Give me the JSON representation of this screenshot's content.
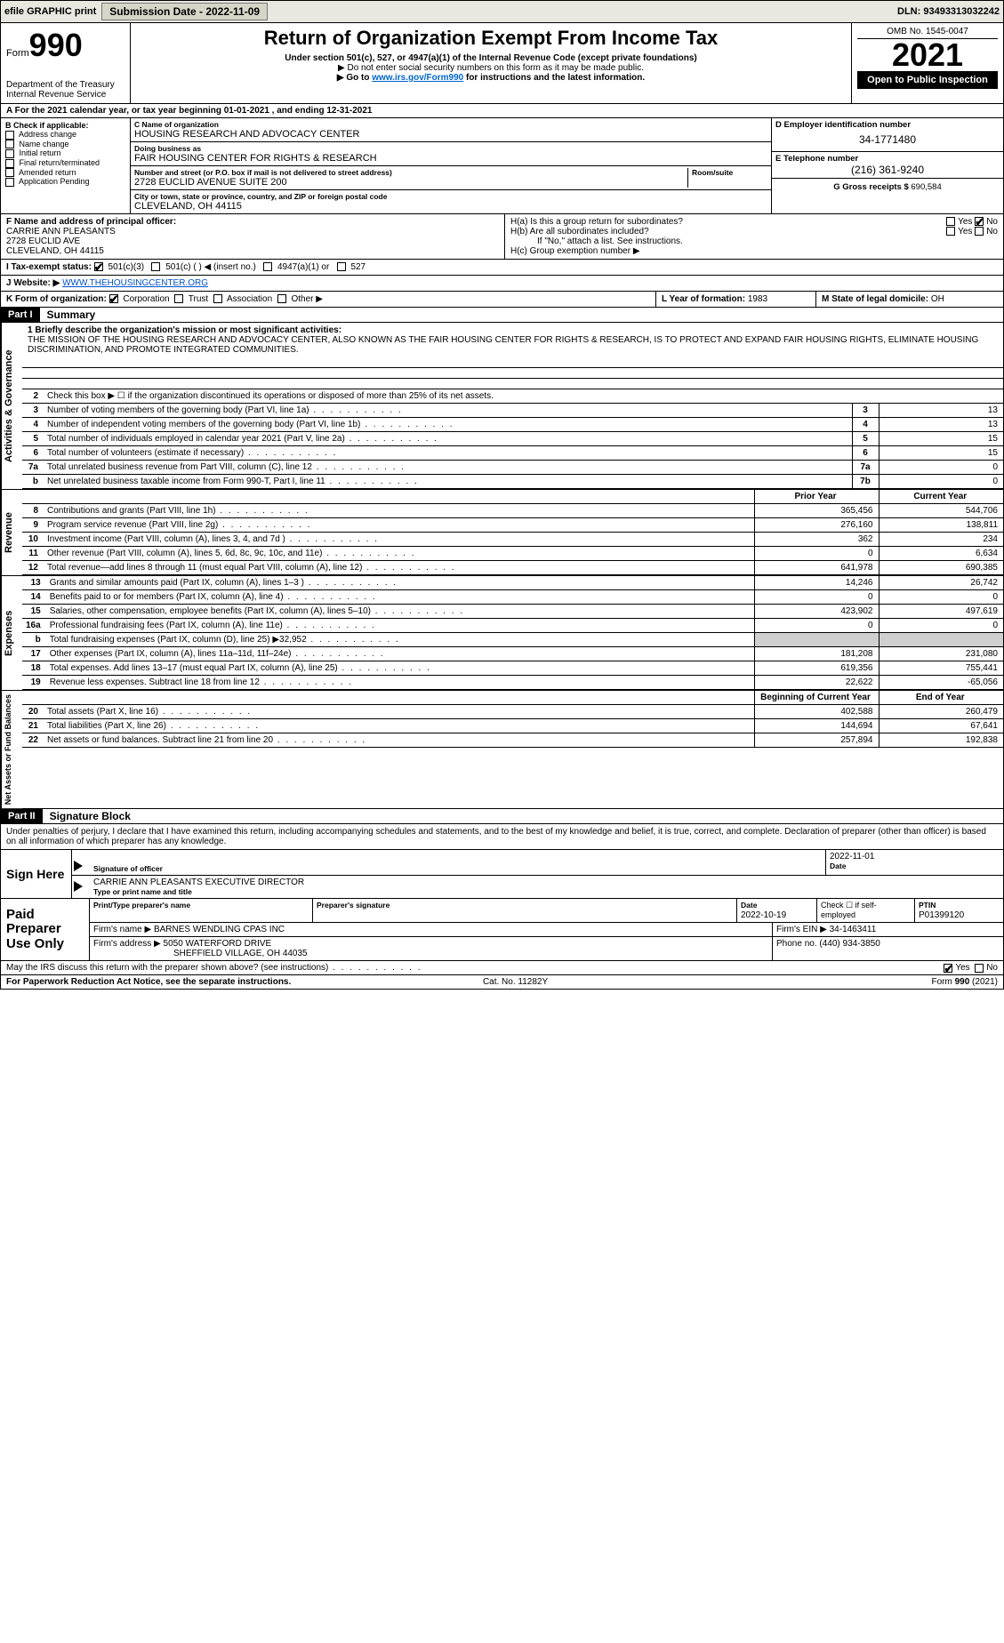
{
  "topbar": {
    "efile": "efile GRAPHIC print",
    "submission_label": "Submission Date - 2022-11-09",
    "dln": "DLN: 93493313032242"
  },
  "header": {
    "form_label": "Form",
    "form_number": "990",
    "title": "Return of Organization Exempt From Income Tax",
    "subtitle": "Under section 501(c), 527, or 4947(a)(1) of the Internal Revenue Code (except private foundations)",
    "note1": "▶ Do not enter social security numbers on this form as it may be made public.",
    "note2_pre": "▶ Go to ",
    "note2_link": "www.irs.gov/Form990",
    "note2_post": " for instructions and the latest information.",
    "omb": "OMB No. 1545-0047",
    "year": "2021",
    "open_public": "Open to Public Inspection",
    "dept": "Department of the Treasury",
    "irs": "Internal Revenue Service"
  },
  "lineA": "For the 2021 calendar year, or tax year beginning 01-01-2021    , and ending 12-31-2021",
  "boxB": {
    "heading": "B Check if applicable:",
    "items": [
      "Address change",
      "Name change",
      "Initial return",
      "Final return/terminated",
      "Amended return",
      "Application Pending"
    ]
  },
  "boxC": {
    "name_label": "C Name of organization",
    "name": "HOUSING RESEARCH AND ADVOCACY CENTER",
    "dba_label": "Doing business as",
    "dba": "FAIR HOUSING CENTER FOR RIGHTS & RESEARCH",
    "addr_label": "Number and street (or P.O. box if mail is not delivered to street address)",
    "room_label": "Room/suite",
    "addr": "2728 EUCLID AVENUE SUITE 200",
    "city_label": "City or town, state or province, country, and ZIP or foreign postal code",
    "city": "CLEVELAND, OH  44115"
  },
  "boxD": {
    "label": "D Employer identification number",
    "value": "34-1771480"
  },
  "boxE": {
    "label": "E Telephone number",
    "value": "(216) 361-9240"
  },
  "boxG": {
    "label": "G Gross receipts $",
    "value": "690,584"
  },
  "boxF": {
    "label": "F Name and address of principal officer:",
    "name": "CARRIE ANN PLEASANTS",
    "addr1": "2728 EUCLID AVE",
    "addr2": "CLEVELAND, OH  44115"
  },
  "boxH": {
    "ha": "H(a)  Is this a group return for subordinates?",
    "hb": "H(b)  Are all subordinates included?",
    "hb_note": "If \"No,\" attach a list. See instructions.",
    "hc": "H(c)  Group exemption number ▶",
    "yes": "Yes",
    "no": "No"
  },
  "boxI": {
    "label": "I  Tax-exempt status:",
    "opts": [
      "501(c)(3)",
      "501(c) (   ) ◀ (insert no.)",
      "4947(a)(1) or",
      "527"
    ]
  },
  "boxJ": {
    "label": "J  Website: ▶",
    "value": "WWW.THEHOUSINGCENTER.ORG"
  },
  "boxK": {
    "label": "K Form of organization:",
    "opts": [
      "Corporation",
      "Trust",
      "Association",
      "Other ▶"
    ]
  },
  "boxL": {
    "label": "L Year of formation:",
    "value": "1983"
  },
  "boxM": {
    "label": "M State of legal domicile:",
    "value": "OH"
  },
  "part1": {
    "label": "Part I",
    "title": "Summary"
  },
  "mission": {
    "prompt": "1  Briefly describe the organization's mission or most significant activities:",
    "text": "THE MISSION OF THE HOUSING RESEARCH AND ADVOCACY CENTER, ALSO KNOWN AS THE FAIR HOUSING CENTER FOR RIGHTS & RESEARCH, IS TO PROTECT AND EXPAND FAIR HOUSING RIGHTS, ELIMINATE HOUSING DISCRIMINATION, AND PROMOTE INTEGRATED COMMUNITIES."
  },
  "gov_rows": [
    {
      "n": "2",
      "d": "Check this box ▶ ☐ if the organization discontinued its operations or disposed of more than 25% of its net assets.",
      "b": "",
      "v": ""
    },
    {
      "n": "3",
      "d": "Number of voting members of the governing body (Part VI, line 1a)",
      "b": "3",
      "v": "13"
    },
    {
      "n": "4",
      "d": "Number of independent voting members of the governing body (Part VI, line 1b)",
      "b": "4",
      "v": "13"
    },
    {
      "n": "5",
      "d": "Total number of individuals employed in calendar year 2021 (Part V, line 2a)",
      "b": "5",
      "v": "15"
    },
    {
      "n": "6",
      "d": "Total number of volunteers (estimate if necessary)",
      "b": "6",
      "v": "15"
    },
    {
      "n": "7a",
      "d": "Total unrelated business revenue from Part VIII, column (C), line 12",
      "b": "7a",
      "v": "0"
    },
    {
      "n": "b",
      "d": "Net unrelated business taxable income from Form 990-T, Part I, line 11",
      "b": "7b",
      "v": "0"
    }
  ],
  "two_col_header": {
    "prior": "Prior Year",
    "current": "Current Year"
  },
  "revenue_rows": [
    {
      "n": "8",
      "d": "Contributions and grants (Part VIII, line 1h)",
      "p": "365,456",
      "c": "544,706"
    },
    {
      "n": "9",
      "d": "Program service revenue (Part VIII, line 2g)",
      "p": "276,160",
      "c": "138,811"
    },
    {
      "n": "10",
      "d": "Investment income (Part VIII, column (A), lines 3, 4, and 7d )",
      "p": "362",
      "c": "234"
    },
    {
      "n": "11",
      "d": "Other revenue (Part VIII, column (A), lines 5, 6d, 8c, 9c, 10c, and 11e)",
      "p": "0",
      "c": "6,634"
    },
    {
      "n": "12",
      "d": "Total revenue—add lines 8 through 11 (must equal Part VIII, column (A), line 12)",
      "p": "641,978",
      "c": "690,385"
    }
  ],
  "expense_rows": [
    {
      "n": "13",
      "d": "Grants and similar amounts paid (Part IX, column (A), lines 1–3 )",
      "p": "14,246",
      "c": "26,742"
    },
    {
      "n": "14",
      "d": "Benefits paid to or for members (Part IX, column (A), line 4)",
      "p": "0",
      "c": "0"
    },
    {
      "n": "15",
      "d": "Salaries, other compensation, employee benefits (Part IX, column (A), lines 5–10)",
      "p": "423,902",
      "c": "497,619"
    },
    {
      "n": "16a",
      "d": "Professional fundraising fees (Part IX, column (A), line 11e)",
      "p": "0",
      "c": "0"
    },
    {
      "n": "b",
      "d": "Total fundraising expenses (Part IX, column (D), line 25) ▶32,952",
      "p": "SHADE",
      "c": "SHADE"
    },
    {
      "n": "17",
      "d": "Other expenses (Part IX, column (A), lines 11a–11d, 11f–24e)",
      "p": "181,208",
      "c": "231,080"
    },
    {
      "n": "18",
      "d": "Total expenses. Add lines 13–17 (must equal Part IX, column (A), line 25)",
      "p": "619,356",
      "c": "755,441"
    },
    {
      "n": "19",
      "d": "Revenue less expenses. Subtract line 18 from line 12",
      "p": "22,622",
      "c": "-65,056"
    }
  ],
  "net_header": {
    "prior": "Beginning of Current Year",
    "current": "End of Year"
  },
  "net_rows": [
    {
      "n": "20",
      "d": "Total assets (Part X, line 16)",
      "p": "402,588",
      "c": "260,479"
    },
    {
      "n": "21",
      "d": "Total liabilities (Part X, line 26)",
      "p": "144,694",
      "c": "67,641"
    },
    {
      "n": "22",
      "d": "Net assets or fund balances. Subtract line 21 from line 20",
      "p": "257,894",
      "c": "192,838"
    }
  ],
  "vtabs": {
    "gov": "Activities & Governance",
    "rev": "Revenue",
    "exp": "Expenses",
    "net": "Net Assets or Fund Balances"
  },
  "part2": {
    "label": "Part II",
    "title": "Signature Block"
  },
  "penalty": "Under penalties of perjury, I declare that I have examined this return, including accompanying schedules and statements, and to the best of my knowledge and belief, it is true, correct, and complete. Declaration of preparer (other than officer) is based on all information of which preparer has any knowledge.",
  "sign": {
    "here": "Sign Here",
    "sig_officer": "Signature of officer",
    "date": "Date",
    "date_val": "2022-11-01",
    "typed": "CARRIE ANN PLEASANTS  EXECUTIVE DIRECTOR",
    "typed_lbl": "Type or print name and title"
  },
  "paid": {
    "title": "Paid Preparer Use Only",
    "h": [
      "Print/Type preparer's name",
      "Preparer's signature",
      "Date",
      "Check ☐ if self-employed",
      "PTIN"
    ],
    "date": "2022-10-19",
    "ptin": "P01399120",
    "firm_lbl": "Firm's name    ▶",
    "firm": "BARNES WENDLING CPAS INC",
    "ein_lbl": "Firm's EIN ▶",
    "ein": "34-1463411",
    "addr_lbl": "Firm's address ▶",
    "addr1": "5050 WATERFORD DRIVE",
    "addr2": "SHEFFIELD VILLAGE, OH  44035",
    "phone_lbl": "Phone no.",
    "phone": "(440) 934-3850"
  },
  "discuss": "May the IRS discuss this return with the preparer shown above? (see instructions)",
  "footer": {
    "pra": "For Paperwork Reduction Act Notice, see the separate instructions.",
    "cat": "Cat. No. 11282Y",
    "form": "Form 990 (2021)"
  }
}
